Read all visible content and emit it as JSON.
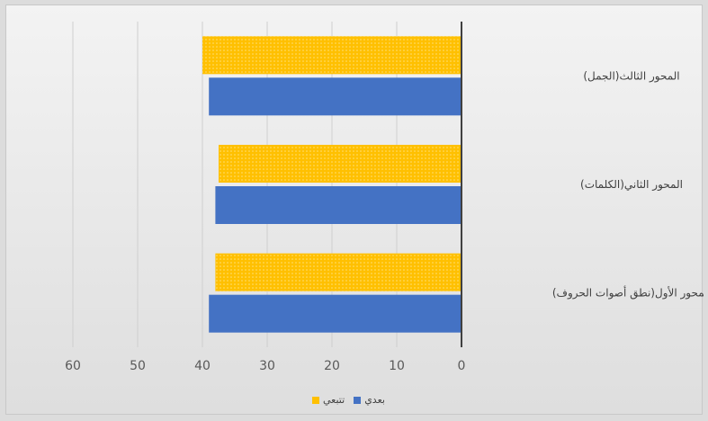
{
  "chart_data": {
    "type": "bar",
    "orientation": "horizontal",
    "x_axis_reversed": true,
    "categories": [
      "المحور الأول(نطق أصوات الحروف)",
      "المحور الثاني(الكلمات)",
      "المحور الثالث(الجمل)"
    ],
    "series": [
      {
        "name": "بعدي",
        "values": [
          39,
          38,
          39
        ],
        "color": "#4472c4"
      },
      {
        "name": "تتبعي",
        "values": [
          38,
          37.5,
          40
        ],
        "color": "#ffc000"
      }
    ],
    "xlim": [
      0,
      60
    ],
    "x_ticks": [
      "0",
      "10",
      "20",
      "30",
      "40",
      "50",
      "60"
    ],
    "grid": true,
    "legend_position": "bottom",
    "title": "",
    "xlabel": "",
    "ylabel": ""
  }
}
